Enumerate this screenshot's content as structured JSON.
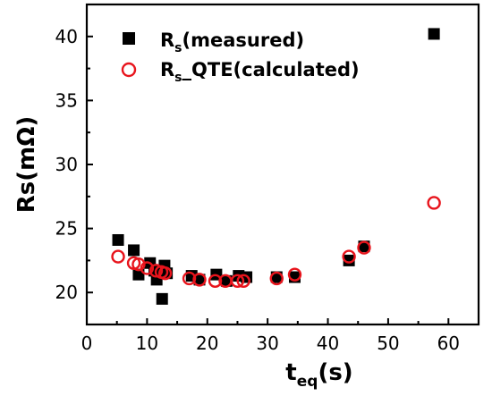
{
  "chart_data": {
    "type": "scatter",
    "title": "",
    "xlabel": {
      "main": "t",
      "sub": "eq",
      "tail": "(s)"
    },
    "ylabel": "Rs(mΩ)",
    "xlim": [
      0,
      65
    ],
    "ylim": [
      17.5,
      42.5
    ],
    "xticks": [
      0,
      10,
      20,
      30,
      40,
      50,
      60
    ],
    "yticks": [
      20,
      25,
      30,
      35,
      40
    ],
    "grid": false,
    "legend_position": "top-left",
    "series": [
      {
        "name": "R_s(measured)",
        "legend": {
          "main": "R",
          "sub": "s",
          "tail": "(measured)"
        },
        "marker": "filled-square",
        "color": "#000000",
        "x": [
          5.2,
          7.8,
          8.6,
          10.5,
          11.2,
          11.6,
          12.0,
          12.5,
          12.9,
          13.3,
          17.4,
          18.7,
          21.5,
          23.2,
          25.2,
          26.5,
          31.5,
          34.5,
          43.5,
          46.0,
          57.6
        ],
        "y": [
          24.1,
          23.3,
          21.4,
          22.3,
          21.7,
          21.0,
          21.6,
          19.5,
          22.1,
          21.5,
          21.3,
          21.0,
          21.4,
          20.9,
          21.3,
          21.2,
          21.2,
          21.2,
          22.5,
          23.6,
          40.2
        ]
      },
      {
        "name": "R_s_QTE(calculated)",
        "legend": {
          "main": "R",
          "sub": "s",
          "tail": "_QTE(calculated)"
        },
        "marker": "open-circle",
        "color": "#e8141c",
        "x": [
          5.2,
          7.8,
          8.6,
          10.0,
          11.5,
          12.4,
          13.0,
          17.0,
          18.7,
          21.3,
          23.0,
          25.0,
          26.0,
          31.5,
          34.5,
          43.5,
          46.0,
          57.6
        ],
        "y": [
          22.8,
          22.3,
          22.2,
          21.9,
          21.7,
          21.6,
          21.5,
          21.1,
          21.0,
          20.9,
          20.9,
          20.9,
          20.9,
          21.1,
          21.4,
          22.8,
          23.5,
          27.0
        ]
      }
    ]
  }
}
